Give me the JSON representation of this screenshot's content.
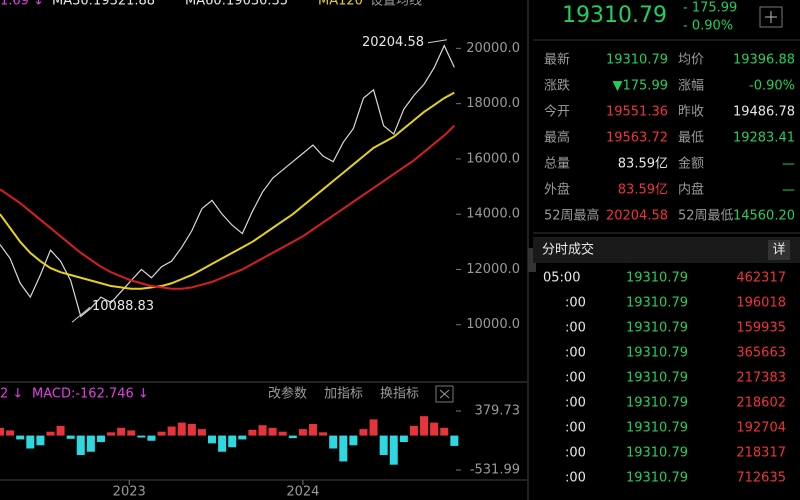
{
  "legend_top": [
    "1.69 ↓",
    "MA30:19321.88",
    "MA60:19030.35",
    "MA120",
    "设置均线"
  ],
  "chart_data": [
    {
      "type": "line",
      "xlim": [
        0,
        52
      ],
      "xticks": [
        {
          "value": 12.8,
          "label": "2023"
        },
        {
          "value": 30,
          "label": "2024"
        }
      ],
      "ylim": [
        8000,
        21750
      ],
      "yticks": [
        {
          "value": 10000,
          "label": "10000.0"
        },
        {
          "value": 12000,
          "label": "12000.0"
        },
        {
          "value": 14000,
          "label": "14000.0"
        },
        {
          "value": 16000,
          "label": "16000.0"
        },
        {
          "value": 18000,
          "label": "18000.0"
        },
        {
          "value": 20000,
          "label": "20000.0"
        }
      ],
      "annotations": [
        {
          "text": "20204.58",
          "value": 20204.58
        },
        {
          "text": "10088.83",
          "value": 10088.83
        }
      ],
      "series": [
        {
          "color": "#d8d8d8",
          "values": [
            12900,
            12400,
            11500,
            11000,
            11800,
            12700,
            12300,
            11600,
            10300,
            10600,
            11000,
            10800,
            11200,
            11600,
            12000,
            11700,
            12100,
            12300,
            12800,
            13400,
            14200,
            14500,
            14000,
            13600,
            13300,
            14100,
            14800,
            15300,
            15600,
            15900,
            16200,
            16500,
            16100,
            15900,
            16600,
            17100,
            18200,
            18500,
            17200,
            16900,
            17800,
            18300,
            18700,
            19300,
            20100,
            19310.79
          ]
        },
        {
          "color": "#e6d11a",
          "values": [
            14000,
            13500,
            13000,
            12600,
            12300,
            12050,
            11900,
            11800,
            11700,
            11600,
            11500,
            11400,
            11350,
            11300,
            11300,
            11350,
            11400,
            11500,
            11650,
            11800,
            12000,
            12200,
            12400,
            12600,
            12800,
            13000,
            13250,
            13500,
            13750,
            14000,
            14300,
            14600,
            14900,
            15200,
            15500,
            15800,
            16100,
            16400,
            16600,
            16800,
            17100,
            17400,
            17700,
            17950,
            18200,
            18400
          ]
        },
        {
          "color": "#d81e1e",
          "values": [
            14900,
            14650,
            14400,
            14100,
            13800,
            13500,
            13200,
            12900,
            12600,
            12350,
            12100,
            11900,
            11750,
            11600,
            11500,
            11400,
            11350,
            11300,
            11300,
            11350,
            11450,
            11550,
            11700,
            11850,
            12000,
            12200,
            12400,
            12600,
            12800,
            13000,
            13200,
            13450,
            13700,
            13950,
            14200,
            14450,
            14700,
            14950,
            15200,
            15450,
            15700,
            15950,
            16250,
            16550,
            16850,
            17200
          ]
        }
      ]
    },
    {
      "type": "bar",
      "prefix": "2 ↓",
      "title": "MACD:-162.746 ↓",
      "xlim": [
        0,
        52
      ],
      "ylim": [
        -531.99,
        379.73
      ],
      "yticks": [
        -531.99,
        379.73
      ],
      "pos_color": "#e8333a",
      "neg_color": "#2dd8e0",
      "values": [
        120,
        80,
        -60,
        -200,
        -150,
        60,
        150,
        -50,
        -300,
        -250,
        -100,
        50,
        120,
        80,
        -30,
        -80,
        60,
        140,
        200,
        180,
        100,
        -120,
        -250,
        -180,
        -60,
        90,
        160,
        120,
        60,
        -40,
        100,
        180,
        50,
        -200,
        -400,
        -150,
        100,
        250,
        -300,
        -450,
        -100,
        150,
        300,
        200,
        120,
        -160
      ]
    }
  ],
  "macd_buttons": [
    "改参数",
    "加指标",
    "换指标"
  ],
  "quote": {
    "price": "19310.79",
    "change": "- 175.99",
    "change_pct": "- 0.90%",
    "rows": [
      [
        "最新",
        "19310.79",
        "均价",
        "19396.88"
      ],
      [
        "涨跌",
        "▼175.99",
        "涨幅",
        "-0.90%"
      ],
      [
        "今开",
        "19551.36",
        "昨收",
        "19486.78"
      ],
      [
        "最高",
        "19563.72",
        "最低",
        "19283.41"
      ],
      [
        "总量",
        "83.59亿",
        "金额",
        "—"
      ],
      [
        "外盘",
        "83.59亿",
        "内盘",
        "—"
      ],
      [
        "52周最高",
        "20204.58",
        "52周最低",
        "14560.20"
      ]
    ]
  },
  "trades": {
    "title": "分时成交",
    "detail": "详",
    "rows": [
      [
        "05:00",
        "19310.79",
        "462317"
      ],
      [
        ":00",
        "19310.79",
        "196018"
      ],
      [
        ":00",
        "19310.79",
        "159935"
      ],
      [
        ":00",
        "19310.79",
        "365663"
      ],
      [
        ":00",
        "19310.79",
        "217383"
      ],
      [
        ":00",
        "19310.79",
        "218602"
      ],
      [
        ":00",
        "19310.79",
        "192704"
      ],
      [
        ":00",
        "19310.79",
        "218317"
      ],
      [
        ":00",
        "19310.79",
        "712635"
      ]
    ]
  }
}
